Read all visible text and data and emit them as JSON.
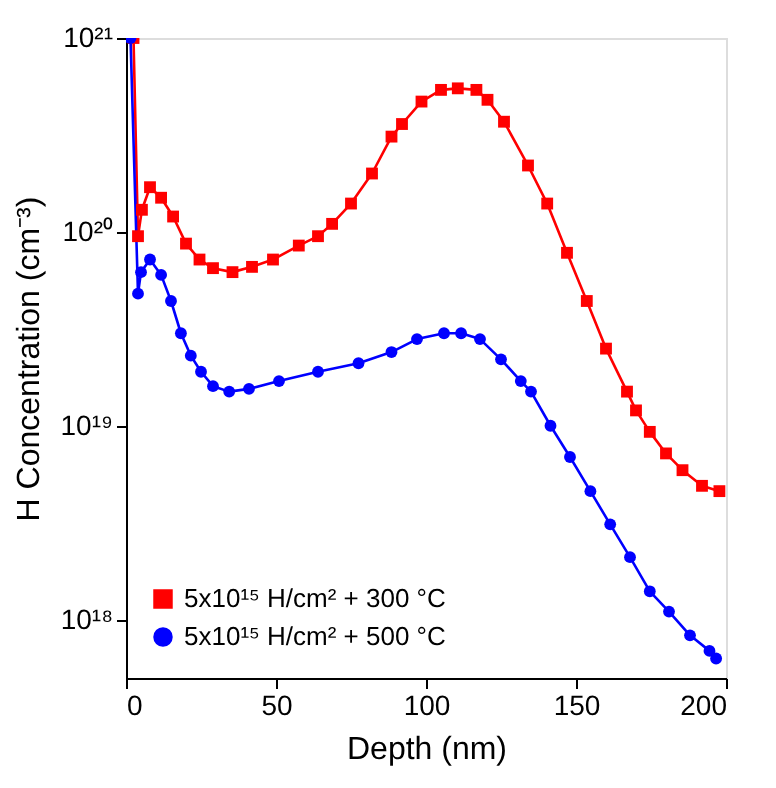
{
  "chart_data": {
    "type": "line",
    "xlabel": "Depth (nm)",
    "ylabel": "H Concentration (cm⁻³)",
    "xlim": [
      0,
      200
    ],
    "xticks": [
      0,
      50,
      100,
      150,
      200
    ],
    "ylim": [
      5e+17,
      1e+21
    ],
    "yticks": [
      {
        "value": 1e+18,
        "label": "10¹⁸"
      },
      {
        "value": 1e+19,
        "label": "10¹⁹"
      },
      {
        "value": 1e+20,
        "label": "10²⁰"
      },
      {
        "value": 1e+21,
        "label": "10²¹"
      }
    ],
    "log": "y",
    "grid": false,
    "legend": "bottom left",
    "line_style": "solid",
    "series": [
      {
        "name": "5x10¹⁵ H/cm² + 300 °C",
        "color": "#ff0000",
        "marker": "square",
        "x": [
          2.5,
          4,
          5.3,
          8,
          11.7,
          15.7,
          20,
          24.5,
          29,
          35.5,
          42,
          49,
          57.6,
          64,
          68.7,
          75,
          82,
          88.5,
          92,
          98.5,
          105,
          110.6,
          116.8,
          120.5,
          126,
          134,
          140.4,
          147,
          153.6,
          160,
          167,
          170,
          174.6,
          180,
          185.5,
          192,
          197.8
        ],
        "values": [
          1e+21,
          9.5e+19,
          1.3e+20,
          1.7e+20,
          1.5e+20,
          1.2e+20,
          8.7e+19,
          7.2e+19,
          6.5e+19,
          6.2e+19,
          6.6e+19,
          7.2e+19,
          8.5e+19,
          9.5e+19,
          1.1e+20,
          1.4e+20,
          2e+20,
          3.1e+20,
          3.6e+20,
          4.7e+20,
          5.4e+20,
          5.5e+20,
          5.4e+20,
          4.8e+20,
          3.7e+20,
          2.2e+20,
          1.4e+20,
          7.8e+19,
          4.4e+19,
          2.5e+19,
          1.5e+19,
          1.2e+19,
          9.3e+18,
          7.2e+18,
          5.9e+18,
          4.9e+18,
          4.6e+18
        ]
      },
      {
        "name": "5x10¹⁵ H/cm² + 500 °C",
        "color": "#0000ff",
        "marker": "circle",
        "x": [
          1.5,
          4,
          5,
          8,
          11.7,
          15,
          18.3,
          21.6,
          25,
          29,
          34.4,
          41,
          51,
          64,
          77.5,
          88.5,
          97,
          106,
          111.7,
          118,
          125,
          131.6,
          135,
          141.5,
          148,
          154.8,
          161.4,
          168,
          174.6,
          181,
          188,
          194.5,
          196.7
        ],
        "values": [
          1e+21,
          4.8e+19,
          6.2e+19,
          7.2e+19,
          6e+19,
          4.4e+19,
          3e+19,
          2.3e+19,
          1.9e+19,
          1.6e+19,
          1.5e+19,
          1.55e+19,
          1.7e+19,
          1.9e+19,
          2.1e+19,
          2.4e+19,
          2.8e+19,
          3e+19,
          3e+19,
          2.8e+19,
          2.2e+19,
          1.7e+19,
          1.5e+19,
          1e+19,
          6.9e+18,
          4.6e+18,
          3.1e+18,
          2.1e+18,
          1.4e+18,
          1.1e+18,
          8.3e+17,
          6.9e+17,
          6.3e+17
        ]
      }
    ]
  }
}
